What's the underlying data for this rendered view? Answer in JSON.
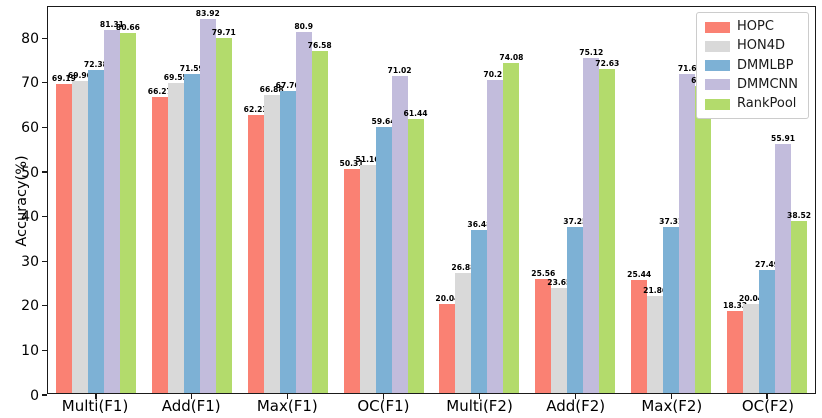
{
  "chart_data": {
    "type": "bar",
    "title": "",
    "xlabel": "",
    "ylabel": "Accuracy(%)",
    "ylim": [
      0,
      87
    ],
    "yticks": [
      0,
      10,
      20,
      30,
      40,
      50,
      60,
      70,
      80
    ],
    "grid": false,
    "legend_position": "upper right",
    "categories": [
      "Multi(F1)",
      "Add(F1)",
      "Max(F1)",
      "OC(F1)",
      "Multi(F2)",
      "Add(F2)",
      "Max(F2)",
      "OC(F2)"
    ],
    "series": [
      {
        "name": "HOPC",
        "color": "#fa8173",
        "values": [
          69.19,
          66.27,
          62.23,
          50.31,
          20.04,
          25.56,
          25.44,
          18.33
        ]
      },
      {
        "name": "HON4D",
        "color": "#d9d9d9",
        "values": [
          69.96,
          69.55,
          66.88,
          51.16,
          26.88,
          23.65,
          21.86,
          20.04
        ]
      },
      {
        "name": "DMMLBP",
        "color": "#7db1d5",
        "values": [
          72.38,
          71.59,
          67.76,
          59.64,
          36.48,
          37.25,
          37.31,
          27.49
        ]
      },
      {
        "name": "DMMCNN",
        "color": "#c2bcdc",
        "values": [
          81.31,
          83.92,
          80.9,
          71.02,
          70.21,
          75.12,
          71.6,
          55.91
        ]
      },
      {
        "name": "RankPool",
        "color": "#b3db6c",
        "values": [
          80.66,
          79.71,
          76.58,
          61.44,
          74.08,
          72.63,
          68.74,
          38.52
        ]
      }
    ],
    "axis_color": "#1a1a1a",
    "label_color": "#000000"
  }
}
